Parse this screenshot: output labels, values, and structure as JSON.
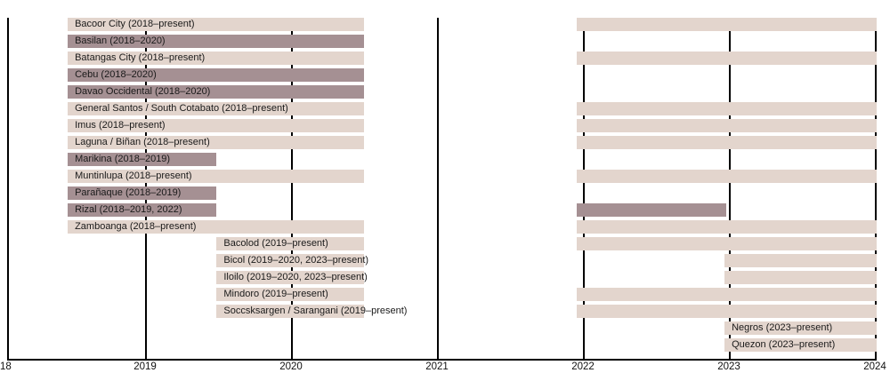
{
  "chart_data": {
    "type": "timeline",
    "description": "Horizontal timeline bars of team tenures, 2018 to 2024, with a league hiatus gap between mid-2020 and 2022",
    "axis": {
      "range": [
        2018,
        2024
      ],
      "gridline_years": [
        2019,
        2020,
        2021,
        2022,
        2023
      ],
      "ticks": [
        {
          "label": "18",
          "year": 2018,
          "align": "left"
        },
        {
          "label": "2019",
          "year": 2019,
          "align": "center"
        },
        {
          "label": "2020",
          "year": 2020,
          "align": "center"
        },
        {
          "label": "2021",
          "year": 2021,
          "align": "center"
        },
        {
          "label": "2022",
          "year": 2022,
          "align": "center"
        },
        {
          "label": "2023",
          "year": 2023,
          "align": "center"
        },
        {
          "label": "2024",
          "year": 2024,
          "align": "center"
        }
      ]
    },
    "colors": {
      "current_bar": "#e3d5cd",
      "former_bar": "#a59093",
      "gridline": "#000000",
      "axis": "#000000",
      "label_text": "#1a1a1a",
      "background": "#ffffff"
    },
    "rows": [
      {
        "label": "Bacoor City (2018–present)",
        "status": "current",
        "segments": [
          {
            "start": 2018.47,
            "end": 2020.5
          },
          {
            "start": 2021.96,
            "end": 2024.01
          }
        ]
      },
      {
        "label": "Basilan (2018–2020)",
        "status": "former",
        "segments": [
          {
            "start": 2018.47,
            "end": 2020.5
          }
        ]
      },
      {
        "label": "Batangas City (2018–present)",
        "status": "current",
        "segments": [
          {
            "start": 2018.47,
            "end": 2020.5
          },
          {
            "start": 2021.96,
            "end": 2024.01
          }
        ]
      },
      {
        "label": "Cebu (2018–2020)",
        "status": "former",
        "segments": [
          {
            "start": 2018.47,
            "end": 2020.5
          }
        ]
      },
      {
        "label": "Davao Occidental (2018–2020)",
        "status": "former",
        "segments": [
          {
            "start": 2018.47,
            "end": 2020.5
          }
        ]
      },
      {
        "label": "General Santos / South Cotabato (2018–present)",
        "status": "current",
        "segments": [
          {
            "start": 2018.47,
            "end": 2020.5
          },
          {
            "start": 2021.96,
            "end": 2024.01
          }
        ]
      },
      {
        "label": "Imus (2018–present)",
        "status": "current",
        "segments": [
          {
            "start": 2018.47,
            "end": 2020.5
          },
          {
            "start": 2021.96,
            "end": 2024.01
          }
        ]
      },
      {
        "label": "Laguna / Biñan (2018–present)",
        "status": "current",
        "segments": [
          {
            "start": 2018.47,
            "end": 2020.5
          },
          {
            "start": 2021.96,
            "end": 2024.01
          }
        ]
      },
      {
        "label": "Marikina (2018–2019)",
        "status": "former",
        "segments": [
          {
            "start": 2018.47,
            "end": 2019.49
          }
        ]
      },
      {
        "label": "Muntinlupa (2018–present)",
        "status": "current",
        "segments": [
          {
            "start": 2018.47,
            "end": 2020.5
          },
          {
            "start": 2021.96,
            "end": 2024.01
          }
        ]
      },
      {
        "label": "Parañaque (2018–2019)",
        "status": "former",
        "segments": [
          {
            "start": 2018.47,
            "end": 2019.49
          }
        ]
      },
      {
        "label": "Rizal (2018–2019, 2022)",
        "status": "former",
        "segments": [
          {
            "start": 2018.47,
            "end": 2019.49
          },
          {
            "start": 2021.96,
            "end": 2022.98
          }
        ]
      },
      {
        "label": "Zamboanga (2018–present)",
        "status": "current",
        "segments": [
          {
            "start": 2018.47,
            "end": 2020.5
          },
          {
            "start": 2021.96,
            "end": 2024.01
          }
        ]
      },
      {
        "label": "Bacolod (2019–present)",
        "status": "current",
        "segments": [
          {
            "start": 2019.49,
            "end": 2020.5
          },
          {
            "start": 2021.96,
            "end": 2024.01
          }
        ]
      },
      {
        "label": "Bicol (2019–2020, 2023–present)",
        "status": "current",
        "segments": [
          {
            "start": 2019.49,
            "end": 2020.5
          },
          {
            "start": 2022.97,
            "end": 2024.01
          }
        ]
      },
      {
        "label": "Iloilo (2019–2020, 2023–present)",
        "status": "current",
        "segments": [
          {
            "start": 2019.49,
            "end": 2020.5
          },
          {
            "start": 2022.97,
            "end": 2024.01
          }
        ]
      },
      {
        "label": "Mindoro (2019–present)",
        "status": "current",
        "segments": [
          {
            "start": 2019.49,
            "end": 2020.5
          },
          {
            "start": 2021.96,
            "end": 2024.01
          }
        ]
      },
      {
        "label": "Soccsksargen / Sarangani (2019–present)",
        "status": "current",
        "segments": [
          {
            "start": 2019.49,
            "end": 2020.5
          },
          {
            "start": 2021.96,
            "end": 2024.01
          }
        ]
      },
      {
        "label": "Negros (2023–present)",
        "status": "current",
        "segments": [
          {
            "start": 2022.97,
            "end": 2024.01
          }
        ]
      },
      {
        "label": "Quezon (2023–present)",
        "status": "current",
        "segments": [
          {
            "start": 2022.97,
            "end": 2024.01
          }
        ]
      }
    ]
  }
}
